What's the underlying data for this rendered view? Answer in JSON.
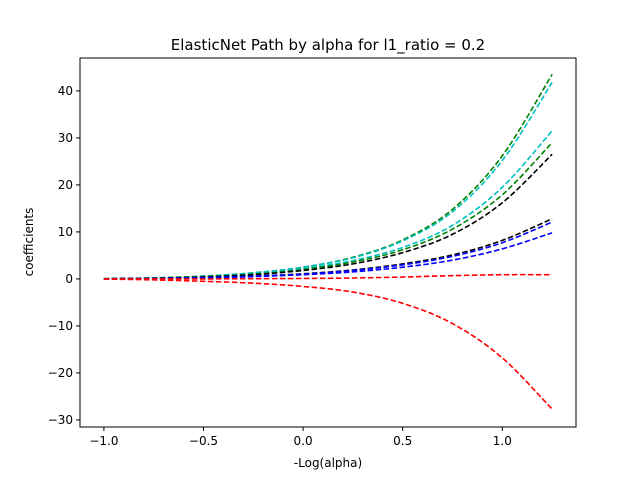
{
  "chart_data": {
    "type": "line",
    "title": "ElasticNet Path by alpha for l1_ratio = 0.2",
    "xlabel": "-Log(alpha)",
    "ylabel": "coefficients",
    "xlim": [
      -1.12,
      1.37
    ],
    "ylim": [
      -31.5,
      47.0
    ],
    "xticks": [
      -1.0,
      -0.5,
      0.0,
      0.5,
      1.0
    ],
    "xtick_labels": [
      "−1.0",
      "−0.5",
      "0.0",
      "0.5",
      "1.0"
    ],
    "yticks": [
      -30,
      -20,
      -10,
      0,
      10,
      20,
      30,
      40
    ],
    "ytick_labels": [
      "−30",
      "−20",
      "−10",
      "0",
      "10",
      "20",
      "30",
      "40"
    ],
    "grid": false,
    "line_style": "dashed",
    "x": [
      -1.0,
      -0.75,
      -0.5,
      -0.25,
      0.0,
      0.25,
      0.5,
      0.75,
      1.0,
      1.25
    ],
    "series": [
      {
        "color": "#008000",
        "values": [
          0.05,
          0.2,
          0.6,
          1.3,
          2.5,
          4.6,
          8.3,
          14.8,
          26.2,
          43.5
        ]
      },
      {
        "color": "#00bfbf",
        "values": [
          0.05,
          0.2,
          0.6,
          1.3,
          2.5,
          4.5,
          8.1,
          14.3,
          25.2,
          41.8
        ]
      },
      {
        "color": "#00bfbf",
        "values": [
          0.04,
          0.2,
          0.5,
          1.1,
          2.2,
          3.9,
          6.7,
          11.4,
          19.5,
          31.5
        ]
      },
      {
        "color": "#008000",
        "values": [
          0.04,
          0.2,
          0.5,
          1.0,
          2.0,
          3.6,
          6.2,
          10.6,
          17.9,
          29.0
        ]
      },
      {
        "color": "#000000",
        "values": [
          0.04,
          0.15,
          0.4,
          0.9,
          1.8,
          3.2,
          5.6,
          9.5,
          16.2,
          26.5
        ]
      },
      {
        "color": "#000000",
        "values": [
          0.03,
          0.1,
          0.3,
          0.6,
          1.1,
          1.9,
          3.2,
          5.1,
          8.2,
          12.8
        ]
      },
      {
        "color": "#0000ff",
        "values": [
          0.03,
          0.1,
          0.3,
          0.6,
          1.0,
          1.8,
          3.0,
          4.8,
          7.7,
          12.1
        ]
      },
      {
        "color": "#0000ff",
        "values": [
          0.02,
          0.1,
          0.2,
          0.5,
          0.9,
          1.5,
          2.5,
          4.0,
          6.4,
          9.8
        ]
      },
      {
        "color": "#ff0000",
        "values": [
          0.0,
          0.0,
          0.0,
          0.05,
          0.1,
          0.2,
          0.4,
          0.7,
          0.9,
          0.9
        ]
      },
      {
        "color": "#ff0000",
        "values": [
          -0.02,
          -0.2,
          -0.5,
          -0.9,
          -1.6,
          -2.8,
          -5.2,
          -9.5,
          -16.8,
          -27.7
        ]
      }
    ]
  }
}
